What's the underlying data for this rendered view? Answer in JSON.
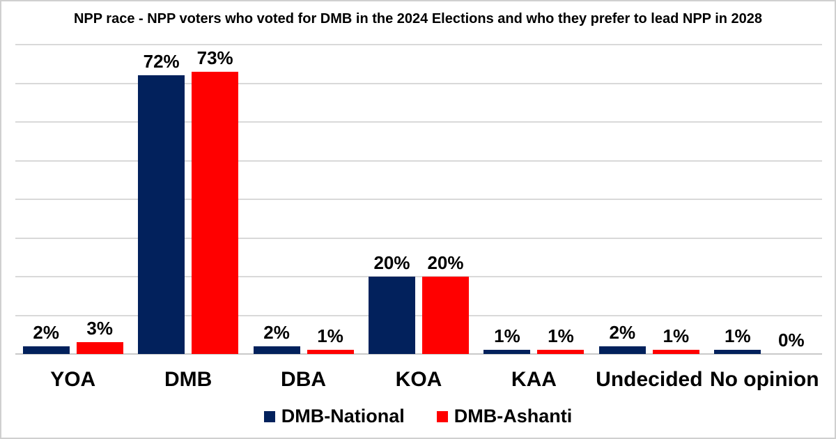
{
  "title": "NPP race - NPP voters who voted for DMB in the 2024 Elections and who they prefer to lead NPP in 2028",
  "chart_data": {
    "type": "bar",
    "title": "NPP race - NPP voters who voted for DMB in the 2024 Elections and who they prefer to lead NPP in 2028",
    "categories": [
      "YOA",
      "DMB",
      "DBA",
      "KOA",
      "KAA",
      "Undecided",
      "No opinion"
    ],
    "series": [
      {
        "name": "DMB-National",
        "color": "#02215C",
        "values": [
          2,
          72,
          2,
          20,
          1,
          2,
          1
        ]
      },
      {
        "name": "DMB-Ashanti",
        "color": "#FF0000",
        "values": [
          3,
          73,
          1,
          20,
          1,
          1,
          0
        ]
      }
    ],
    "value_suffix": "%",
    "xlabel": "",
    "ylabel": "",
    "ylim": [
      0,
      80
    ],
    "grid_step": 10,
    "grid": true,
    "data_labels": true,
    "legend_position": "bottom"
  },
  "colors": {
    "gridline": "#D9D9D9",
    "axis_line": "#C9C9C9",
    "background": "#FFFFFF",
    "border": "#CFCFCF",
    "text": "#000000"
  }
}
